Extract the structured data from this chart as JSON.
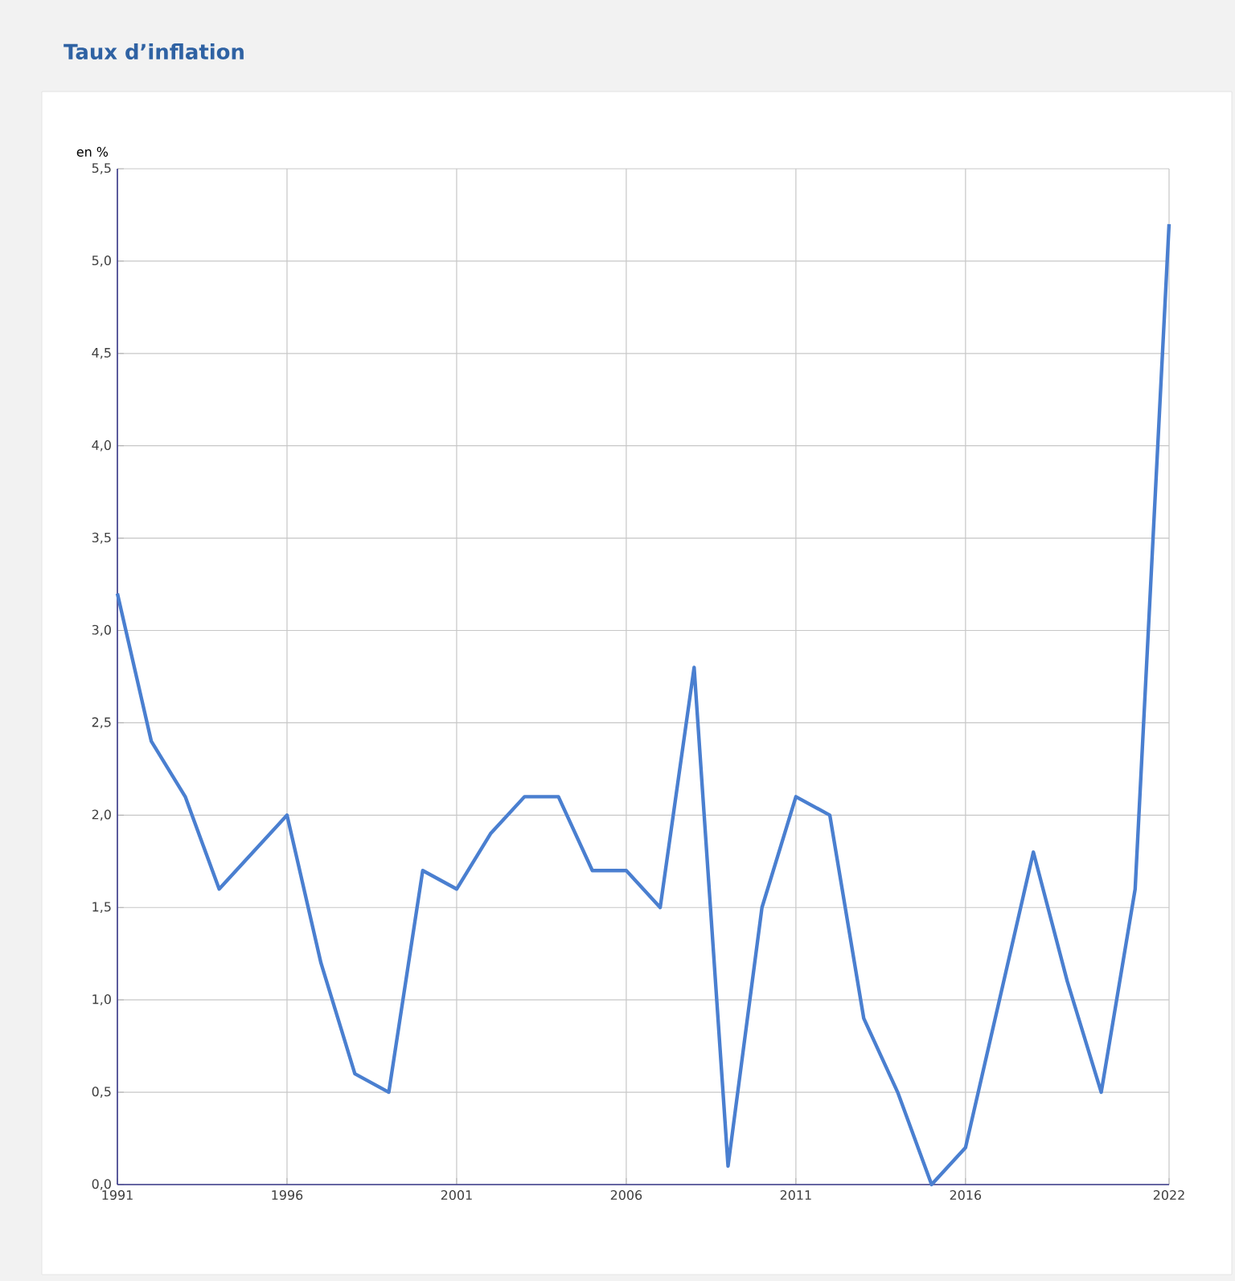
{
  "chart_data": {
    "type": "line",
    "title": "Taux d’inflation",
    "ylabel": "en %",
    "x": [
      1991,
      1992,
      1993,
      1994,
      1995,
      1996,
      1997,
      1998,
      1999,
      2000,
      2001,
      2002,
      2003,
      2004,
      2005,
      2006,
      2007,
      2008,
      2009,
      2010,
      2011,
      2012,
      2013,
      2014,
      2015,
      2016,
      2017,
      2018,
      2019,
      2020,
      2021,
      2022
    ],
    "series": [
      {
        "color": "#4a7fd0",
        "values": [
          3.2,
          2.4,
          2.1,
          1.6,
          1.8,
          2.0,
          1.2,
          0.6,
          0.5,
          1.7,
          1.6,
          1.9,
          2.1,
          2.1,
          1.7,
          1.7,
          1.5,
          2.8,
          0.1,
          1.5,
          2.1,
          2.0,
          0.9,
          0.5,
          0.0,
          0.2,
          1.0,
          1.8,
          1.1,
          0.5,
          1.6,
          5.2
        ]
      }
    ],
    "xlim": [
      1991,
      2022
    ],
    "xticks": [
      1991,
      1996,
      2001,
      2006,
      2011,
      2016,
      2022
    ],
    "ylim": [
      0,
      5.5
    ],
    "yticks": [
      {
        "value": 0,
        "label": "0,0"
      },
      {
        "value": 0.5,
        "label": "0,5"
      },
      {
        "value": 1,
        "label": "1,0"
      },
      {
        "value": 1.5,
        "label": "1,5"
      },
      {
        "value": 2,
        "label": "2,0"
      },
      {
        "value": 2.5,
        "label": "2,5"
      },
      {
        "value": 3,
        "label": "3,0"
      },
      {
        "value": 3.5,
        "label": "3,5"
      },
      {
        "value": 4,
        "label": "4,0"
      },
      {
        "value": 4.5,
        "label": "4,5"
      },
      {
        "value": 5,
        "label": "5,0"
      },
      {
        "value": 5.5,
        "label": "5,5"
      }
    ],
    "grid": true,
    "legend": false,
    "marker": "none",
    "line_style": "solid"
  }
}
